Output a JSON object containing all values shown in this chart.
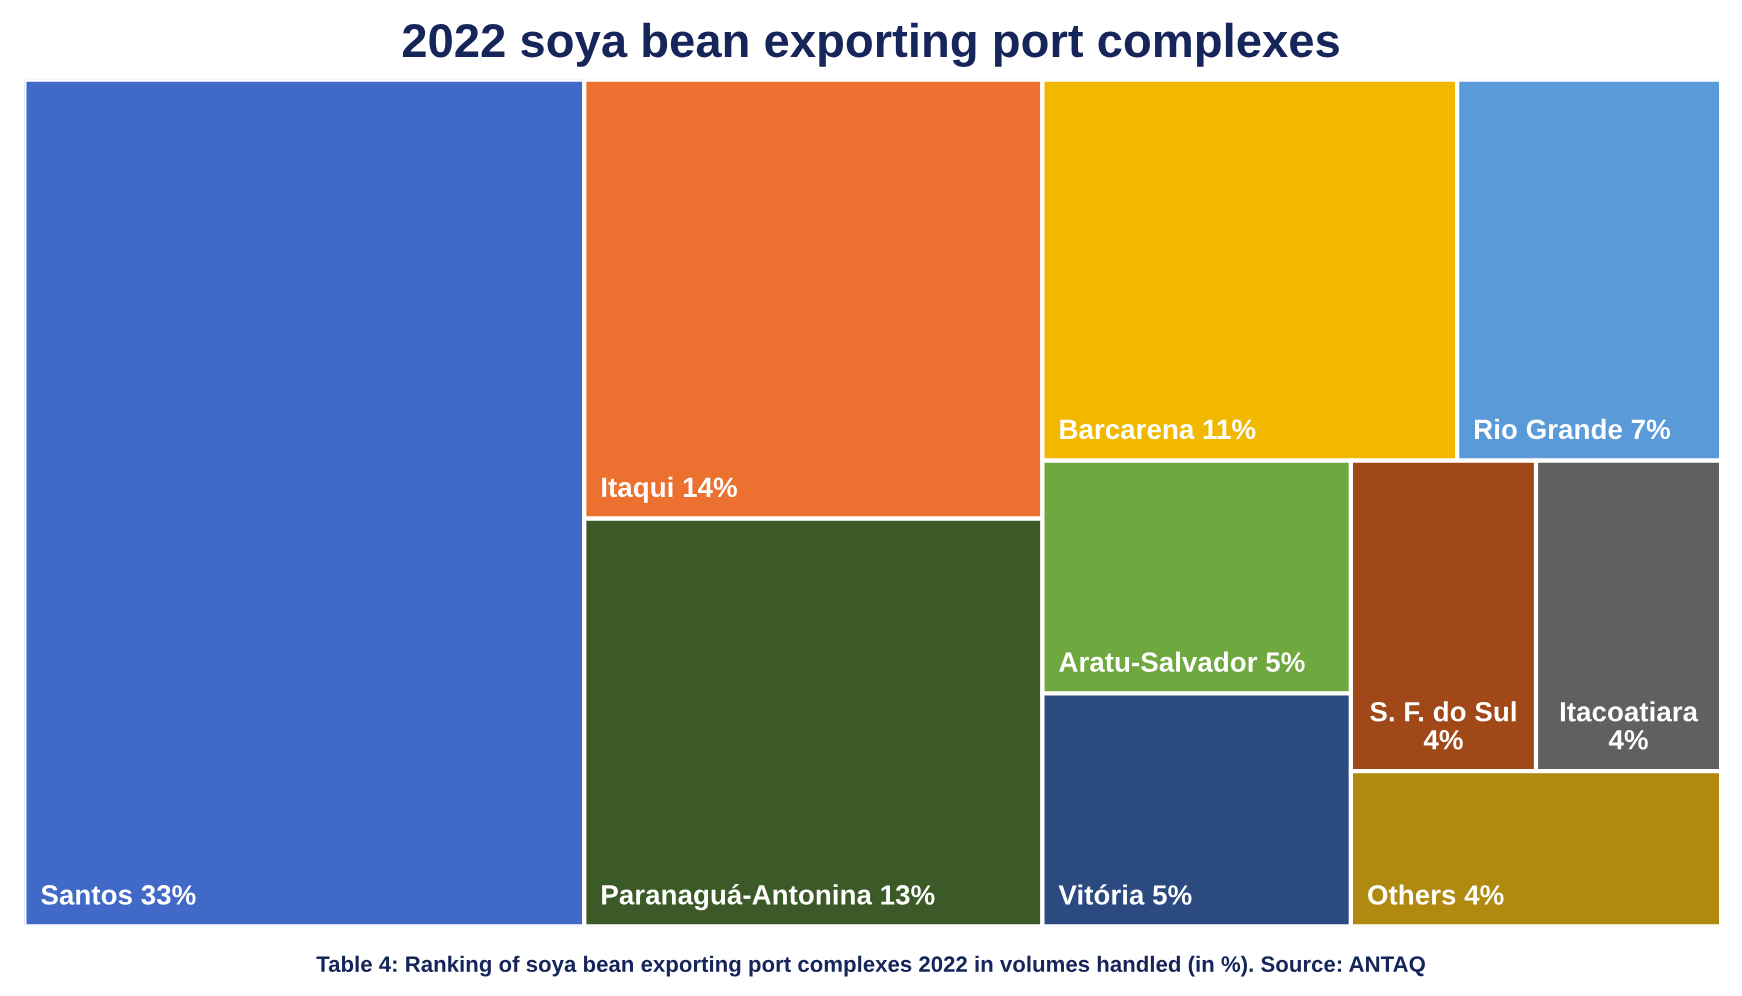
{
  "chart_data": {
    "type": "other",
    "title": "2022 soya bean exporting port complexes",
    "categories": [
      "Santos",
      "Itaqui",
      "Paranaguá-Antonina",
      "Barcarena",
      "Rio Grande",
      "Aratu-Salvador",
      "Vitória",
      "S. F. do Sul",
      "Itacoatiara",
      "Others"
    ],
    "values": [
      33,
      14,
      13,
      11,
      7,
      5,
      5,
      4,
      4,
      4
    ],
    "value_labels": [
      "33%",
      "14%",
      "13%",
      "11%",
      "7%",
      "5%",
      "5%",
      "4%",
      "4%",
      "4%"
    ],
    "colors": [
      "#4169c8",
      "#ec7030",
      "#3c5a28",
      "#f2b800",
      "#5a9ad8",
      "#70a840",
      "#2a4a80",
      "#a04818",
      "#606060",
      "#b08a10"
    ],
    "annotations": [
      "Table 4: Ranking of soya bean exporting port complexes 2022 in volumes handled (in %). Source: ANTAQ"
    ]
  }
}
